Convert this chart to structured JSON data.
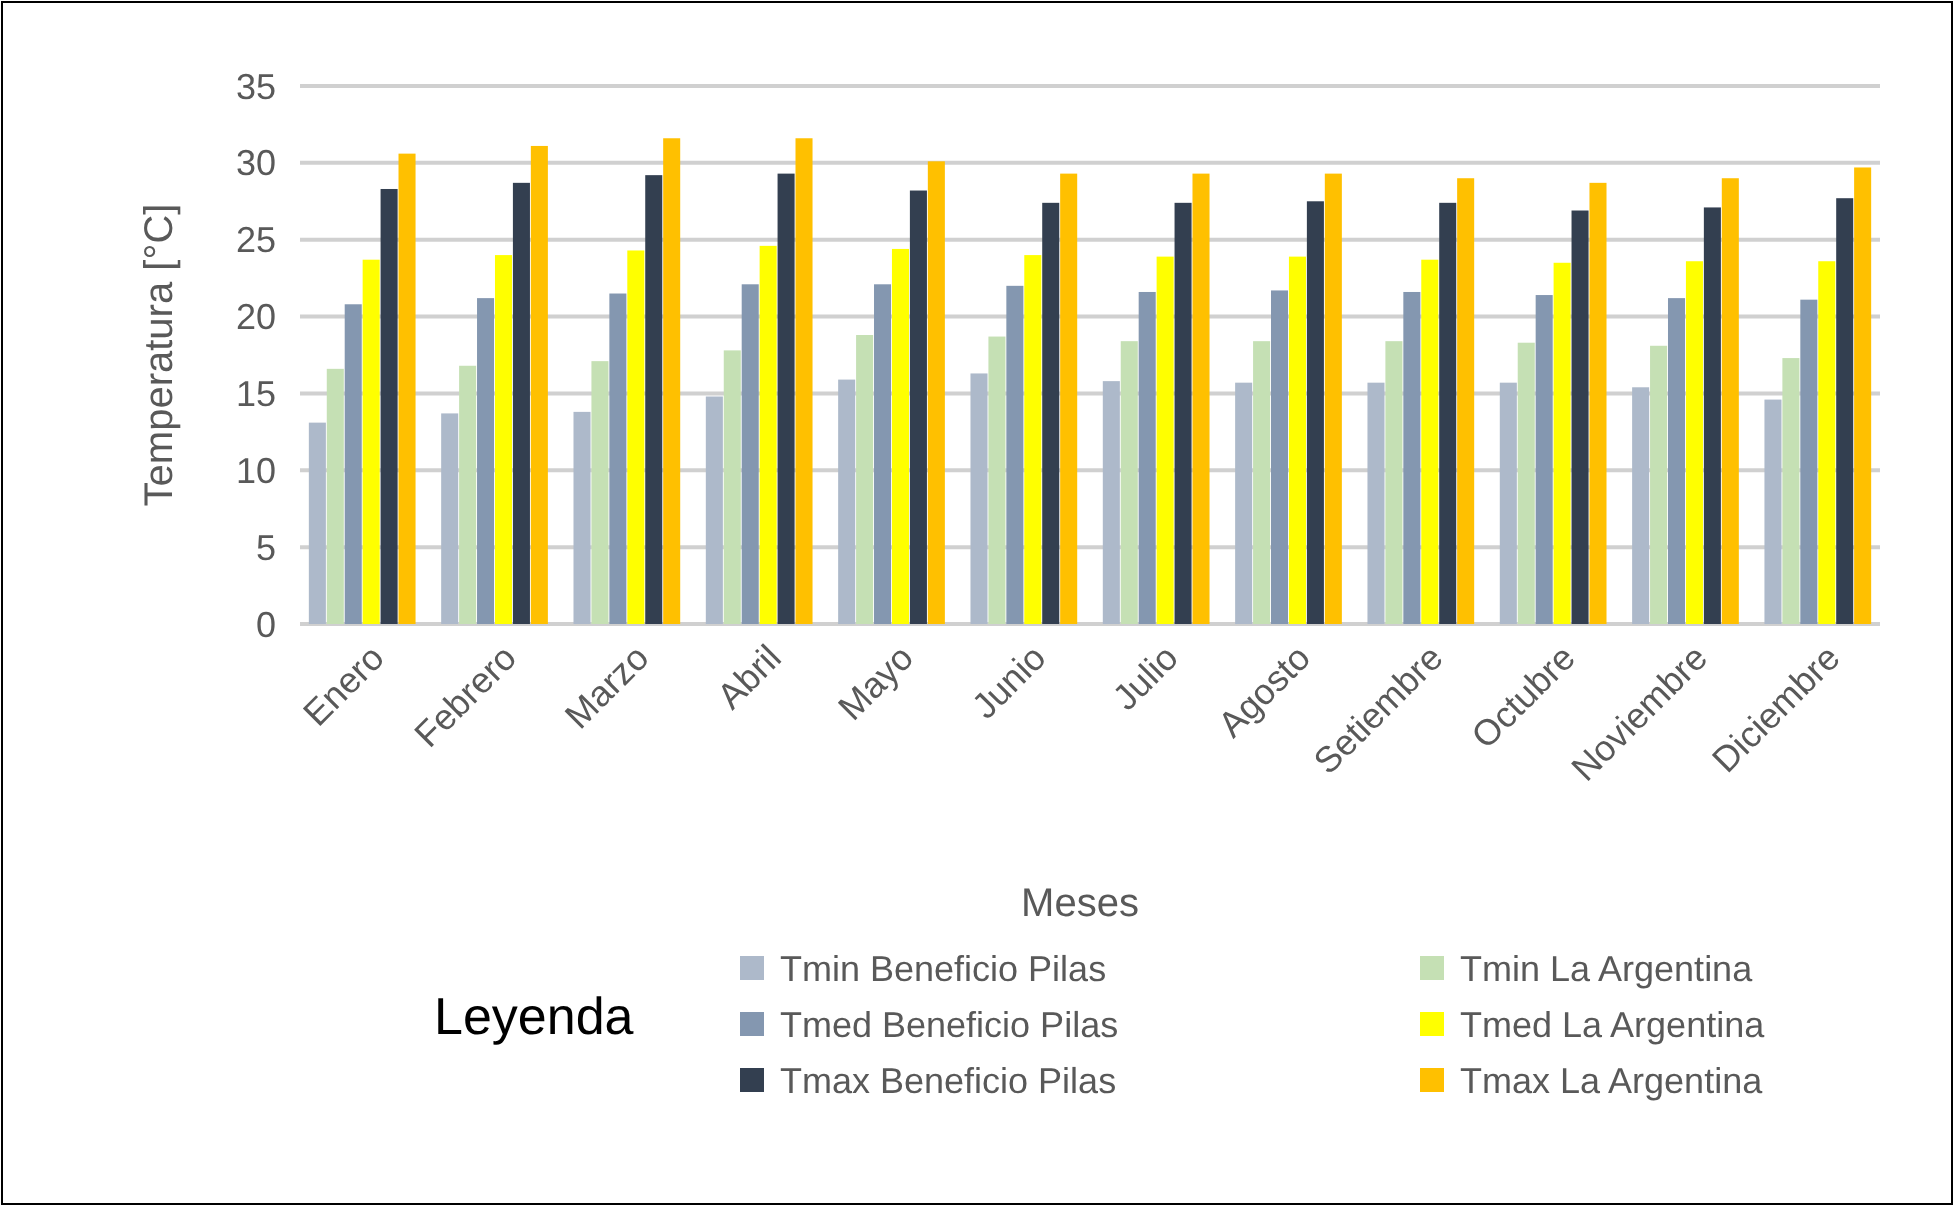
{
  "chart_data": {
    "type": "bar",
    "xlabel": "Meses",
    "ylabel": "Temperatura [°C]",
    "legend_title": "Leyenda",
    "categories": [
      "Enero",
      "Febrero",
      "Marzo",
      "Abril",
      "Mayo",
      "Junio",
      "Julio",
      "Agosto",
      "Setiembre",
      "Octubre",
      "Noviembre",
      "Diciembre"
    ],
    "series": [
      {
        "name": "Tmin Beneficio Pilas",
        "color": "#adb9ca",
        "values": [
          13.1,
          13.7,
          13.8,
          14.8,
          15.9,
          16.3,
          15.8,
          15.7,
          15.7,
          15.7,
          15.4,
          14.6
        ]
      },
      {
        "name": "Tmin La Argentina",
        "color": "#c5e0b4",
        "values": [
          16.6,
          16.8,
          17.1,
          17.8,
          18.8,
          18.7,
          18.4,
          18.4,
          18.4,
          18.3,
          18.1,
          17.3
        ]
      },
      {
        "name": "Tmed Beneficio Pilas",
        "color": "#8497b0",
        "values": [
          20.8,
          21.2,
          21.5,
          22.1,
          22.1,
          22,
          21.6,
          21.7,
          21.6,
          21.4,
          21.2,
          21.1
        ]
      },
      {
        "name": "Tmed La Argentina",
        "color": "#ffff00",
        "values": [
          23.7,
          24,
          24.3,
          24.6,
          24.4,
          24,
          23.9,
          23.9,
          23.7,
          23.5,
          23.6,
          23.6
        ]
      },
      {
        "name": "Tmax Beneficio Pilas",
        "color": "#333f50",
        "values": [
          28.3,
          28.7,
          29.2,
          29.3,
          28.2,
          27.4,
          27.4,
          27.5,
          27.4,
          26.9,
          27.1,
          27.7
        ]
      },
      {
        "name": "Tmax La Argentina",
        "color": "#ffc000",
        "values": [
          30.6,
          31.1,
          31.6,
          31.6,
          30.1,
          29.3,
          29.3,
          29.3,
          29,
          28.7,
          29,
          29.7
        ]
      }
    ],
    "ylim": [
      0,
      35
    ],
    "yticks": [
      0,
      5,
      10,
      15,
      20,
      25,
      30,
      35
    ],
    "grid": "y",
    "legend": "bottom"
  }
}
